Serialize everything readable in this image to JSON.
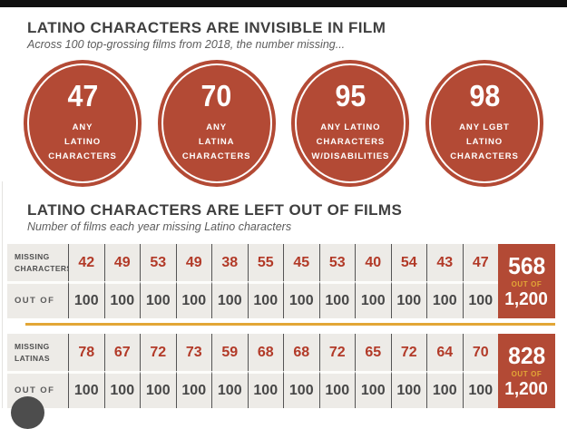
{
  "colors": {
    "brand_red": "#b34a35",
    "number_red": "#b23a28",
    "gold": "#e2a636",
    "dark_text": "#3f3f3f",
    "sub_text": "#5c5c5c",
    "table_bg": "#edebe7"
  },
  "header": {
    "title": "LATINO CHARACTERS ARE INVISIBLE IN FILM",
    "subtitle": "Across 100 top-grossing films from 2018, the number missing..."
  },
  "section2": {
    "title": "LATINO CHARACTERS ARE LEFT OUT OF FILMS",
    "subtitle": "Number of films each year missing Latino characters"
  },
  "ui": {
    "circle_labels": [
      "ANY\nLATINO\nCHARACTERS",
      "ANY\nLATINA\nCHARACTERS",
      "ANY LATINO\nCHARACTERS\nW/DISABILITIES",
      "ANY LGBT\nLATINO\nCHARACTERS"
    ],
    "row_labels": {
      "missing_characters": "MISSING\nCHARACTERS",
      "missing_latinas": "MISSING\nLATINAS",
      "out_of": "OUT OF"
    },
    "out_of_values": [
      100,
      100,
      100,
      100,
      100,
      100,
      100,
      100,
      100,
      100,
      100,
      100
    ],
    "totals": [
      {
        "value": "568",
        "out_of_label": "OUT OF",
        "denominator": "1,200"
      },
      {
        "value": "828",
        "out_of_label": "OUT OF",
        "denominator": "1,200"
      }
    ]
  },
  "chart_data": [
    {
      "type": "table",
      "title": "LATINO CHARACTERS ARE INVISIBLE IN FILM",
      "subtitle": "Across 100 top-grossing films from 2018, the number missing...",
      "categories": [
        "ANY LATINO CHARACTERS",
        "ANY LATINA CHARACTERS",
        "ANY LATINO CHARACTERS W/DISABILITIES",
        "ANY LGBT LATINO CHARACTERS"
      ],
      "values": [
        47,
        70,
        95,
        98
      ],
      "denominator_per_category": 100
    },
    {
      "type": "table",
      "title": "LATINO CHARACTERS ARE LEFT OUT OF FILMS",
      "subtitle": "Number of films each year missing Latino characters",
      "columns_denominator": 100,
      "series": [
        {
          "name": "MISSING CHARACTERS",
          "values": [
            42,
            49,
            53,
            49,
            38,
            55,
            45,
            53,
            40,
            54,
            43,
            47
          ],
          "total": 568,
          "total_out_of": 1200
        },
        {
          "name": "MISSING LATINAS",
          "values": [
            78,
            67,
            72,
            73,
            59,
            68,
            68,
            72,
            65,
            72,
            64,
            70
          ],
          "total": 828,
          "total_out_of": 1200
        }
      ]
    }
  ]
}
